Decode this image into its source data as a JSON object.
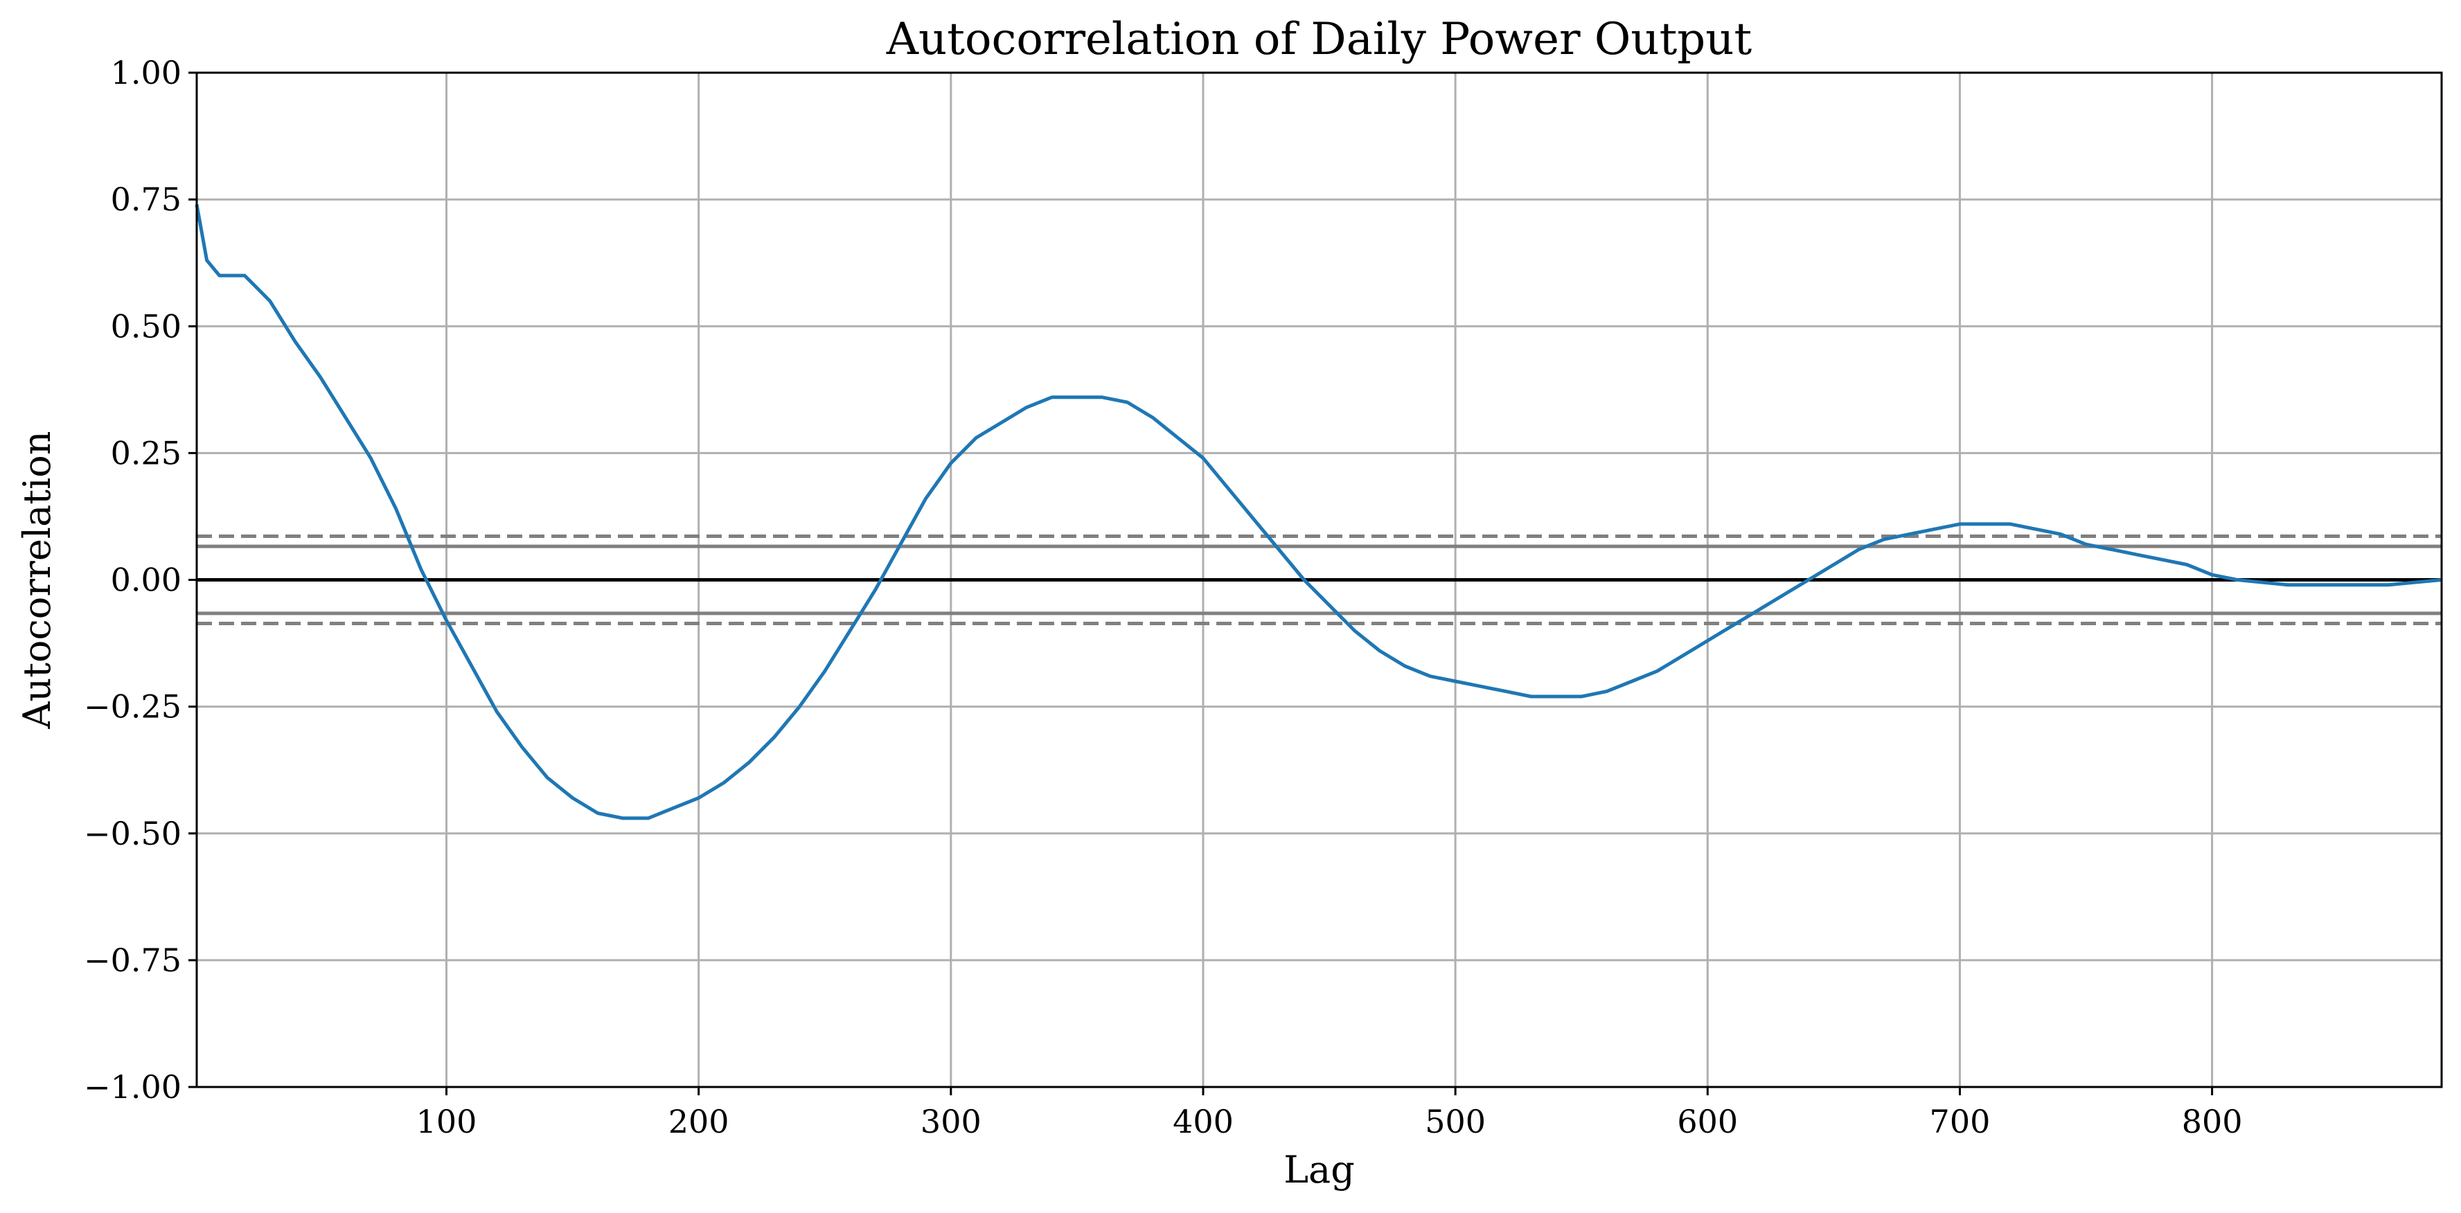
{
  "chart_data": {
    "type": "line",
    "title": "Autocorrelation of Daily Power Output",
    "xlabel": "Lag",
    "ylabel": "Autocorrelation",
    "xlim": [
      1,
      891
    ],
    "ylim": [
      -1.0,
      1.0
    ],
    "xticks": [
      100,
      200,
      300,
      400,
      500,
      600,
      700,
      800
    ],
    "xtick_labels": [
      "100",
      "200",
      "300",
      "400",
      "500",
      "600",
      "700",
      "800"
    ],
    "yticks": [
      -1.0,
      -0.75,
      -0.5,
      -0.25,
      0.0,
      0.25,
      0.5,
      0.75,
      1.0
    ],
    "ytick_labels": [
      "−1.00",
      "−0.75",
      "−0.50",
      "−0.25",
      "0.00",
      "0.25",
      "0.50",
      "0.75",
      "1.00"
    ],
    "grid": true,
    "confidence_lines": {
      "z95": 0.066,
      "z99": 0.086,
      "zero": 0.0
    },
    "series": [
      {
        "color": "#1f77b4",
        "x": [
          1,
          5,
          10,
          20,
          30,
          40,
          50,
          60,
          70,
          80,
          90,
          100,
          110,
          120,
          130,
          140,
          150,
          160,
          170,
          180,
          190,
          200,
          210,
          220,
          230,
          240,
          250,
          260,
          270,
          280,
          290,
          300,
          310,
          320,
          330,
          340,
          350,
          360,
          370,
          380,
          390,
          400,
          410,
          420,
          430,
          440,
          450,
          460,
          470,
          480,
          490,
          500,
          510,
          520,
          530,
          540,
          550,
          560,
          570,
          580,
          590,
          600,
          610,
          620,
          630,
          640,
          650,
          660,
          670,
          680,
          690,
          700,
          710,
          720,
          730,
          740,
          750,
          760,
          770,
          780,
          790,
          800,
          810,
          820,
          830,
          840,
          850,
          860,
          870,
          880,
          891
        ],
        "y": [
          0.74,
          0.63,
          0.6,
          0.6,
          0.55,
          0.47,
          0.4,
          0.32,
          0.24,
          0.14,
          0.02,
          -0.08,
          -0.17,
          -0.26,
          -0.33,
          -0.39,
          -0.43,
          -0.46,
          -0.47,
          -0.47,
          -0.45,
          -0.43,
          -0.4,
          -0.36,
          -0.31,
          -0.25,
          -0.18,
          -0.1,
          -0.02,
          0.07,
          0.16,
          0.23,
          0.28,
          0.31,
          0.34,
          0.36,
          0.36,
          0.36,
          0.35,
          0.32,
          0.28,
          0.24,
          0.18,
          0.12,
          0.06,
          0.0,
          -0.05,
          -0.1,
          -0.14,
          -0.17,
          -0.19,
          -0.2,
          -0.21,
          -0.22,
          -0.23,
          -0.23,
          -0.23,
          -0.22,
          -0.2,
          -0.18,
          -0.15,
          -0.12,
          -0.09,
          -0.06,
          -0.03,
          0.0,
          0.03,
          0.06,
          0.08,
          0.09,
          0.1,
          0.11,
          0.11,
          0.11,
          0.1,
          0.09,
          0.07,
          0.06,
          0.05,
          0.04,
          0.03,
          0.01,
          0.0,
          -0.005,
          -0.01,
          -0.01,
          -0.01,
          -0.01,
          -0.01,
          -0.005,
          0.0
        ]
      }
    ]
  }
}
